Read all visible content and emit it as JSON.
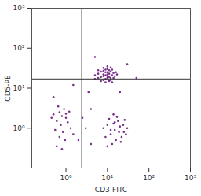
{
  "chart_data": {
    "type": "scatter",
    "x_label": "CD3-FITC",
    "y_label": "CD5-PE",
    "log": true,
    "marker": "dot",
    "color": "#7a2e8c",
    "xlim": [
      0.15,
      1000
    ],
    "ylim": [
      0.1,
      1000
    ],
    "xticks": [
      {
        "value": 1,
        "label": "10⁰"
      },
      {
        "value": 10,
        "label": "10¹"
      },
      {
        "value": 100,
        "label": "10²"
      },
      {
        "value": 1000,
        "label": "10³"
      }
    ],
    "yticks": [
      {
        "value": 1,
        "label": "10⁰"
      },
      {
        "value": 10,
        "label": "10¹"
      },
      {
        "value": 100,
        "label": "10²"
      },
      {
        "value": 1000,
        "label": "10³"
      }
    ],
    "vlines": [
      2.4
    ],
    "hlines": [
      17
    ],
    "x": [
      8,
      10,
      12,
      9,
      7,
      11,
      13,
      6,
      9,
      10,
      14,
      8,
      12,
      7,
      11,
      9,
      10,
      15,
      6,
      8,
      13,
      5,
      11,
      9,
      12,
      16,
      7,
      10,
      8,
      14,
      10,
      6,
      12,
      9,
      11,
      17,
      5,
      13,
      8,
      10,
      10,
      15,
      20,
      12,
      18,
      25,
      8,
      14,
      22,
      16,
      11,
      30,
      13,
      19,
      9,
      17,
      24,
      12,
      21,
      15,
      28,
      10,
      14,
      26,
      0.8,
      0.7,
      1,
      0.6,
      0.9,
      0.5,
      1.2,
      0.75,
      0.65,
      1.1,
      0.85,
      0.55,
      0.95,
      0.7,
      1.3,
      0.6,
      0.8,
      1.5,
      0.45,
      1,
      2,
      3,
      4,
      2.5,
      3.5,
      20,
      1.5,
      30,
      5,
      50,
      0.5,
      4
    ],
    "values": [
      20,
      22,
      18,
      25,
      19,
      28,
      21,
      23,
      17,
      30,
      24,
      27,
      26,
      15,
      19,
      21,
      18,
      20,
      18,
      32,
      29,
      21,
      23,
      14,
      16,
      25,
      26,
      25,
      16,
      18,
      35,
      28,
      33,
      29,
      15,
      22,
      17,
      14,
      22,
      20,
      1.2,
      0.9,
      1.1,
      0.7,
      1.5,
      0.8,
      1,
      1.3,
      0.6,
      0.5,
      1.7,
      1,
      0.4,
      0.8,
      0.6,
      1.9,
      1.2,
      0.9,
      0.45,
      1.4,
      0.7,
      0.35,
      2.2,
      1.6,
      2,
      2.5,
      1.8,
      1.5,
      3,
      2.2,
      2.6,
      1.2,
      3.5,
      1.4,
      0.8,
      0.9,
      0.5,
      0.6,
      1,
      0.35,
      0.3,
      0.7,
      1.8,
      2.3,
      0.5,
      1,
      0.4,
      1.8,
      8,
      8,
      12,
      40,
      60,
      18,
      6,
      3
    ]
  }
}
